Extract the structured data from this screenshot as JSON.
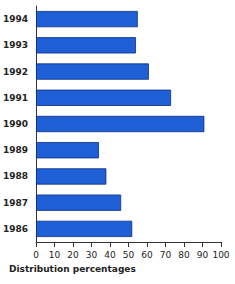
{
  "chart_data": {
    "type": "bar",
    "orientation": "horizontal",
    "xlabel": "Distribution percentages",
    "categories": [
      "1986",
      "1987",
      "1988",
      "1989",
      "1990",
      "1991",
      "1992",
      "1993",
      "1994"
    ],
    "values": [
      52,
      46,
      38,
      34,
      91,
      73,
      61,
      54,
      55
    ],
    "color": "#1f5fd6",
    "xlim": [
      0,
      100
    ],
    "xticks": [
      0,
      10,
      20,
      30,
      40,
      50,
      60,
      70,
      80,
      90,
      100
    ],
    "grid": false
  }
}
